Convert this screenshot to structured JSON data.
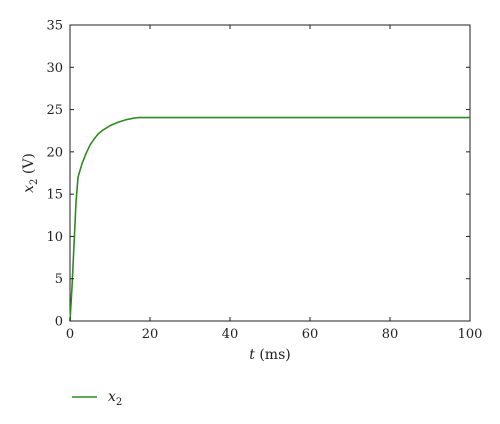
{
  "chart_data": {
    "type": "line",
    "xlabel": {
      "var": "t",
      "unit": " (ms)"
    },
    "ylabel": {
      "var": "x",
      "sub": "2",
      "unit": " (V)"
    },
    "xlim": [
      0,
      100
    ],
    "ylim": [
      0,
      35
    ],
    "xticks": [
      0,
      20,
      40,
      60,
      80,
      100
    ],
    "yticks": [
      0,
      5,
      10,
      15,
      20,
      25,
      30,
      35
    ],
    "grid": false,
    "legend_position": "bottom-left",
    "series": [
      {
        "name": {
          "var": "x",
          "sub": "2"
        },
        "color": "#2e8b22",
        "x": [
          0,
          0.5,
          1,
          1.5,
          2,
          2.5,
          3,
          4,
          5,
          6,
          7,
          8,
          9,
          10,
          12,
          14,
          16,
          17,
          18,
          20,
          30,
          40,
          50,
          60,
          70,
          80,
          90,
          100
        ],
        "y": [
          0,
          4,
          9,
          14,
          17,
          17.8,
          18.6,
          19.8,
          20.8,
          21.5,
          22.1,
          22.5,
          22.8,
          23.1,
          23.5,
          23.8,
          24.0,
          24.05,
          24.05,
          24.05,
          24.05,
          24.05,
          24.05,
          24.05,
          24.05,
          24.05,
          24.05,
          24.05
        ]
      }
    ]
  }
}
